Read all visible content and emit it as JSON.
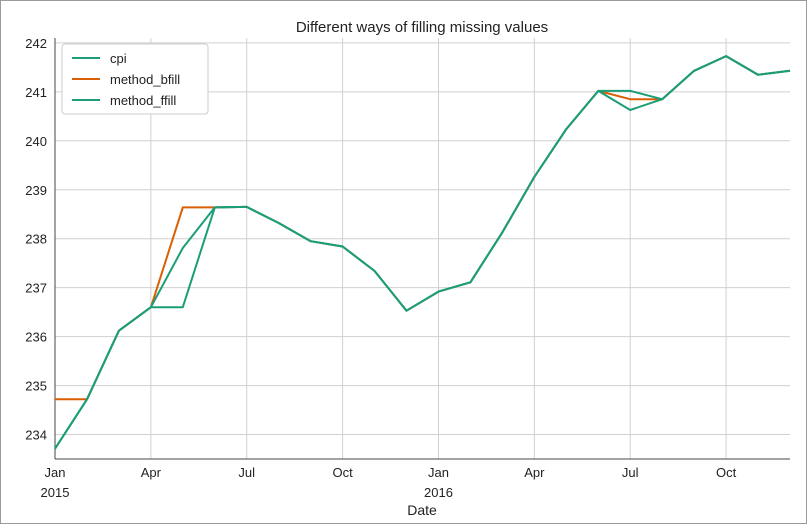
{
  "chart_data": {
    "type": "line",
    "title": "Different ways of filling missing values",
    "xlabel": "Date",
    "ylabel": "",
    "ylim": [
      233.5,
      242.1
    ],
    "xlim": [
      "2015-01",
      "2016-12"
    ],
    "grid": true,
    "legend_position": "top-left",
    "yticks": [
      234,
      235,
      236,
      237,
      238,
      239,
      240,
      241,
      242
    ],
    "xticks": [
      {
        "date": "2015-01",
        "label": "Jan",
        "sublabel": "2015"
      },
      {
        "date": "2015-04",
        "label": "Apr",
        "sublabel": ""
      },
      {
        "date": "2015-07",
        "label": "Jul",
        "sublabel": ""
      },
      {
        "date": "2015-10",
        "label": "Oct",
        "sublabel": ""
      },
      {
        "date": "2016-01",
        "label": "Jan",
        "sublabel": "2016"
      },
      {
        "date": "2016-04",
        "label": "Apr",
        "sublabel": ""
      },
      {
        "date": "2016-07",
        "label": "Jul",
        "sublabel": ""
      },
      {
        "date": "2016-10",
        "label": "Oct",
        "sublabel": ""
      }
    ],
    "x": [
      "2015-01",
      "2015-02",
      "2015-03",
      "2015-04",
      "2015-05",
      "2015-06",
      "2015-07",
      "2015-08",
      "2015-09",
      "2015-10",
      "2015-11",
      "2015-12",
      "2016-01",
      "2016-02",
      "2016-03",
      "2016-04",
      "2016-05",
      "2016-06",
      "2016-07",
      "2016-08",
      "2016-09",
      "2016-10",
      "2016-11",
      "2016-12"
    ],
    "series": [
      {
        "name": "cpi",
        "color": "#1b9e77",
        "values": [
          233.71,
          234.72,
          236.12,
          236.6,
          237.81,
          238.64,
          238.65,
          238.32,
          237.95,
          237.84,
          237.34,
          236.53,
          236.92,
          237.11,
          238.13,
          239.26,
          240.24,
          241.02,
          240.63,
          240.85,
          241.43,
          241.73,
          241.35,
          241.43
        ]
      },
      {
        "name": "method_bfill",
        "color": "#d95f02",
        "values": [
          234.72,
          234.72,
          236.12,
          236.6,
          238.64,
          238.64,
          238.65,
          238.32,
          237.95,
          237.84,
          237.34,
          236.53,
          236.92,
          237.11,
          238.13,
          239.26,
          240.24,
          241.02,
          240.85,
          240.85,
          241.43,
          241.73,
          241.35,
          241.43
        ]
      },
      {
        "name": "method_ffill",
        "color": "#1b9e77",
        "values": [
          233.71,
          234.72,
          236.12,
          236.6,
          236.6,
          238.64,
          238.65,
          238.32,
          237.95,
          237.84,
          237.34,
          236.53,
          236.92,
          237.11,
          238.13,
          239.26,
          240.24,
          241.02,
          241.02,
          240.85,
          241.43,
          241.73,
          241.35,
          241.43
        ]
      }
    ]
  }
}
